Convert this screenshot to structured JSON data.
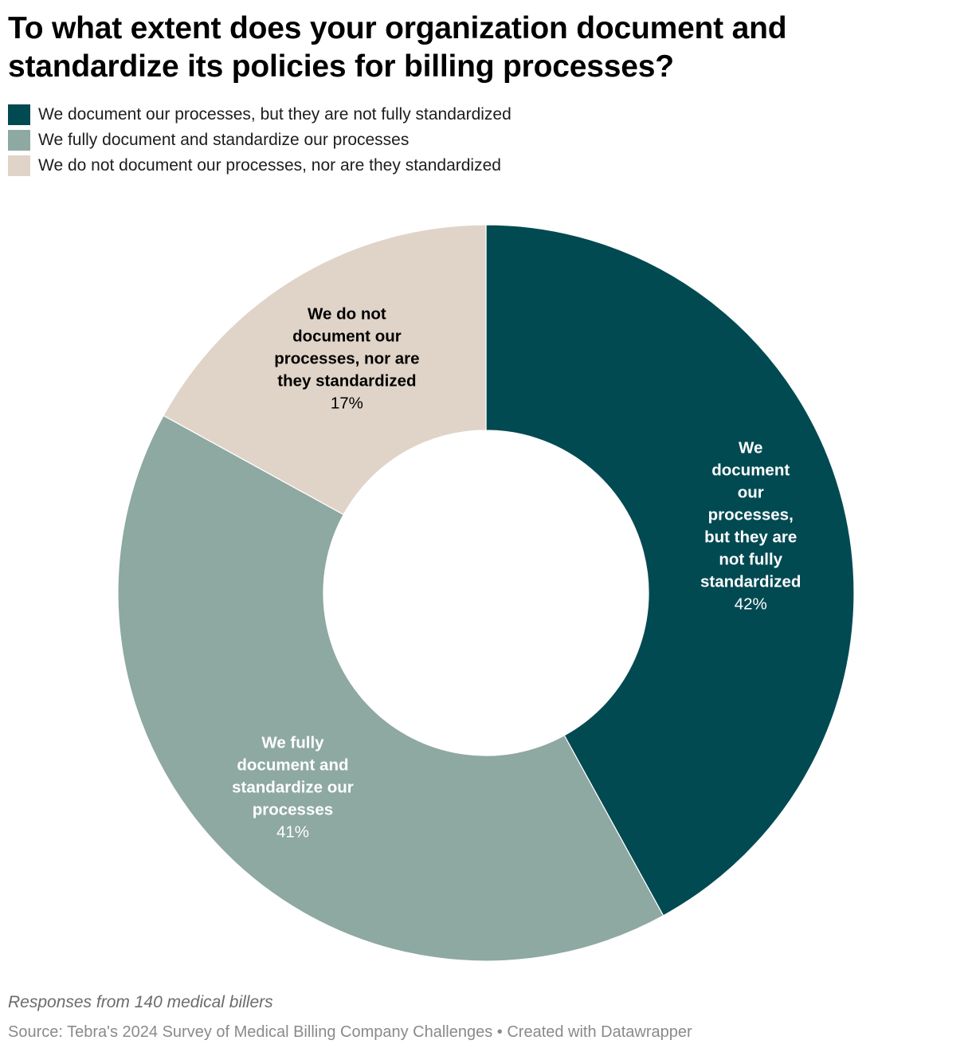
{
  "title": "To what extent does your organization document and standardize its policies for billing processes?",
  "notes": "Responses from 140 medical billers",
  "source": "Source: Tebra's 2024 Survey of Medical Billing Company Challenges • Created with Datawrapper",
  "legend": [
    {
      "label": "We document our processes, but they are not fully standardized",
      "color": "#024a52"
    },
    {
      "label": "We fully document and standardize our processes",
      "color": "#8ea8a2"
    },
    {
      "label": "We do not document our processes, nor are they standardized",
      "color": "#e0d4c8"
    }
  ],
  "chart_data": {
    "type": "pie",
    "subtype": "donut",
    "title": "To what extent does your organization document and standardize its policies for billing processes?",
    "slices": [
      {
        "name": "We document our processes, but they are not fully standardized",
        "label_lines": [
          "We",
          "document",
          "our",
          "processes,",
          "but they are",
          "not fully",
          "standardized"
        ],
        "value": 42,
        "value_label": "42%",
        "color": "#024a52",
        "text_color": "#ffffff"
      },
      {
        "name": "We fully document and standardize our processes",
        "label_lines": [
          "We fully",
          "document and",
          "standardize our",
          "processes"
        ],
        "value": 41,
        "value_label": "41%",
        "color": "#8ea8a2",
        "text_color": "#ffffff"
      },
      {
        "name": "We do not document our processes, nor are they standardized",
        "label_lines": [
          "We do not",
          "document our",
          "processes, nor are",
          "they standardized"
        ],
        "value": 17,
        "value_label": "17%",
        "color": "#e0d4c8",
        "text_color": "#000000"
      }
    ],
    "legend_position": "top-left"
  }
}
